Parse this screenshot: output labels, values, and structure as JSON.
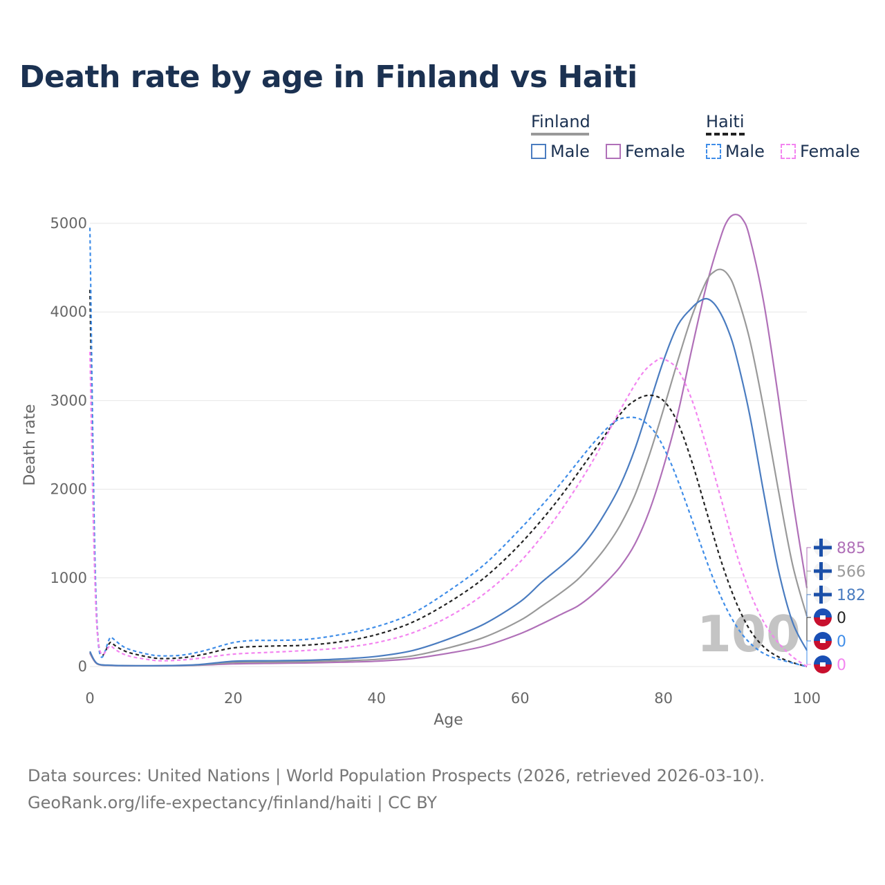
{
  "title": "Death rate by age in Finland vs Haiti",
  "legend": {
    "finland_label": "Finland",
    "haiti_label": "Haiti",
    "finland_male": "Male",
    "finland_female": "Female",
    "haiti_male": "Male",
    "haiti_female": "Female"
  },
  "footer": {
    "line1": "Data sources: United Nations | World Population Prospects (2026, retrieved 2026-03-10).",
    "line2": "GeoRank.org/life-expectancy/finland/haiti | CC BY"
  },
  "colors": {
    "finland_male": "#4a7cc0",
    "finland_female": "#b070b8",
    "finland_total": "#999999",
    "haiti_male": "#3f8de8",
    "haiti_female": "#f384f0",
    "haiti_total": "#222222",
    "title": "#1b3151"
  },
  "chart_data": {
    "type": "line",
    "title": "Death rate by age in Finland vs Haiti",
    "xlabel": "Age",
    "ylabel": "Death rate",
    "xlim": [
      0,
      100
    ],
    "ylim": [
      0,
      5000
    ],
    "xticks": [
      0,
      20,
      40,
      60,
      80,
      100
    ],
    "yticks": [
      0,
      1000,
      2000,
      3000,
      4000,
      5000
    ],
    "grid": true,
    "age_watermark": "100",
    "series": [
      {
        "name": "Finland Female",
        "country": "Finland",
        "sex": "Female",
        "style": "solid",
        "color": "#b070b8",
        "end_label": "885",
        "end_icon": "finland-flag",
        "points": [
          [
            0,
            150
          ],
          [
            1,
            30
          ],
          [
            3,
            12
          ],
          [
            5,
            8
          ],
          [
            10,
            8
          ],
          [
            15,
            14
          ],
          [
            20,
            30
          ],
          [
            25,
            35
          ],
          [
            30,
            40
          ],
          [
            35,
            48
          ],
          [
            40,
            60
          ],
          [
            45,
            90
          ],
          [
            50,
            150
          ],
          [
            55,
            230
          ],
          [
            60,
            370
          ],
          [
            63,
            480
          ],
          [
            66,
            600
          ],
          [
            68,
            680
          ],
          [
            70,
            800
          ],
          [
            72,
            950
          ],
          [
            74,
            1130
          ],
          [
            76,
            1380
          ],
          [
            78,
            1750
          ],
          [
            80,
            2250
          ],
          [
            82,
            2850
          ],
          [
            84,
            3600
          ],
          [
            86,
            4300
          ],
          [
            88,
            4850
          ],
          [
            89,
            5040
          ],
          [
            90,
            5100
          ],
          [
            91,
            5050
          ],
          [
            92,
            4850
          ],
          [
            94,
            4100
          ],
          [
            96,
            3050
          ],
          [
            98,
            1900
          ],
          [
            100,
            885
          ]
        ]
      },
      {
        "name": "Finland Total",
        "country": "Finland",
        "sex": "Total",
        "style": "solid",
        "color": "#999999",
        "end_label": "566",
        "end_icon": "finland-flag",
        "points": [
          [
            0,
            160
          ],
          [
            1,
            32
          ],
          [
            3,
            13
          ],
          [
            5,
            9
          ],
          [
            10,
            9
          ],
          [
            15,
            16
          ],
          [
            20,
            45
          ],
          [
            25,
            50
          ],
          [
            30,
            55
          ],
          [
            35,
            65
          ],
          [
            40,
            80
          ],
          [
            45,
            120
          ],
          [
            50,
            210
          ],
          [
            55,
            330
          ],
          [
            60,
            520
          ],
          [
            63,
            680
          ],
          [
            66,
            850
          ],
          [
            68,
            980
          ],
          [
            70,
            1150
          ],
          [
            72,
            1350
          ],
          [
            74,
            1600
          ],
          [
            76,
            1930
          ],
          [
            78,
            2380
          ],
          [
            80,
            2900
          ],
          [
            82,
            3450
          ],
          [
            84,
            3960
          ],
          [
            86,
            4350
          ],
          [
            87,
            4450
          ],
          [
            88,
            4480
          ],
          [
            89,
            4420
          ],
          [
            90,
            4250
          ],
          [
            92,
            3700
          ],
          [
            94,
            2900
          ],
          [
            96,
            2000
          ],
          [
            98,
            1150
          ],
          [
            100,
            566
          ]
        ]
      },
      {
        "name": "Finland Male",
        "country": "Finland",
        "sex": "Male",
        "style": "solid",
        "color": "#4a7cc0",
        "end_label": "182",
        "end_icon": "finland-flag",
        "points": [
          [
            0,
            170
          ],
          [
            1,
            35
          ],
          [
            3,
            14
          ],
          [
            5,
            10
          ],
          [
            10,
            10
          ],
          [
            15,
            20
          ],
          [
            20,
            60
          ],
          [
            25,
            65
          ],
          [
            30,
            70
          ],
          [
            35,
            85
          ],
          [
            40,
            115
          ],
          [
            45,
            180
          ],
          [
            50,
            310
          ],
          [
            55,
            480
          ],
          [
            60,
            730
          ],
          [
            63,
            950
          ],
          [
            66,
            1150
          ],
          [
            68,
            1300
          ],
          [
            70,
            1500
          ],
          [
            72,
            1750
          ],
          [
            74,
            2050
          ],
          [
            76,
            2450
          ],
          [
            78,
            2950
          ],
          [
            80,
            3450
          ],
          [
            82,
            3850
          ],
          [
            84,
            4050
          ],
          [
            85,
            4120
          ],
          [
            86,
            4150
          ],
          [
            87,
            4100
          ],
          [
            88,
            3980
          ],
          [
            89,
            3800
          ],
          [
            90,
            3550
          ],
          [
            92,
            2850
          ],
          [
            94,
            1950
          ],
          [
            96,
            1100
          ],
          [
            98,
            500
          ],
          [
            100,
            182
          ]
        ]
      },
      {
        "name": "Haiti Total",
        "country": "Haiti",
        "sex": "Total",
        "style": "dashed",
        "color": "#222222",
        "end_label": "0",
        "end_icon": "haiti-flag",
        "points": [
          [
            0,
            4250
          ],
          [
            1,
            450
          ],
          [
            3,
            270
          ],
          [
            5,
            170
          ],
          [
            8,
            110
          ],
          [
            10,
            90
          ],
          [
            13,
            100
          ],
          [
            16,
            140
          ],
          [
            20,
            210
          ],
          [
            25,
            230
          ],
          [
            30,
            240
          ],
          [
            35,
            280
          ],
          [
            40,
            360
          ],
          [
            45,
            500
          ],
          [
            50,
            720
          ],
          [
            55,
            1000
          ],
          [
            60,
            1380
          ],
          [
            65,
            1850
          ],
          [
            70,
            2400
          ],
          [
            74,
            2850
          ],
          [
            76,
            3000
          ],
          [
            78,
            3060
          ],
          [
            80,
            3000
          ],
          [
            82,
            2750
          ],
          [
            84,
            2300
          ],
          [
            86,
            1750
          ],
          [
            88,
            1200
          ],
          [
            90,
            750
          ],
          [
            92,
            420
          ],
          [
            94,
            220
          ],
          [
            96,
            110
          ],
          [
            98,
            45
          ],
          [
            100,
            0
          ]
        ]
      },
      {
        "name": "Haiti Male",
        "country": "Haiti",
        "sex": "Male",
        "style": "dashed",
        "color": "#3f8de8",
        "end_label": "0",
        "end_icon": "haiti-flag",
        "points": [
          [
            0,
            4950
          ],
          [
            1,
            460
          ],
          [
            3,
            330
          ],
          [
            5,
            210
          ],
          [
            8,
            140
          ],
          [
            10,
            120
          ],
          [
            13,
            130
          ],
          [
            16,
            180
          ],
          [
            20,
            270
          ],
          [
            23,
            295
          ],
          [
            25,
            295
          ],
          [
            30,
            305
          ],
          [
            35,
            360
          ],
          [
            40,
            450
          ],
          [
            45,
            600
          ],
          [
            50,
            850
          ],
          [
            55,
            1150
          ],
          [
            60,
            1550
          ],
          [
            65,
            2000
          ],
          [
            70,
            2500
          ],
          [
            73,
            2750
          ],
          [
            75,
            2810
          ],
          [
            77,
            2780
          ],
          [
            79,
            2620
          ],
          [
            81,
            2300
          ],
          [
            83,
            1880
          ],
          [
            85,
            1420
          ],
          [
            87,
            980
          ],
          [
            89,
            620
          ],
          [
            91,
            360
          ],
          [
            93,
            200
          ],
          [
            95,
            110
          ],
          [
            98,
            40
          ],
          [
            100,
            0
          ]
        ]
      },
      {
        "name": "Haiti Female",
        "country": "Haiti",
        "sex": "Female",
        "style": "dashed",
        "color": "#f384f0",
        "end_label": "0",
        "end_icon": "haiti-flag",
        "points": [
          [
            0,
            3550
          ],
          [
            1,
            420
          ],
          [
            3,
            230
          ],
          [
            5,
            130
          ],
          [
            8,
            80
          ],
          [
            10,
            65
          ],
          [
            13,
            75
          ],
          [
            16,
            100
          ],
          [
            20,
            140
          ],
          [
            25,
            160
          ],
          [
            30,
            180
          ],
          [
            35,
            210
          ],
          [
            40,
            270
          ],
          [
            45,
            380
          ],
          [
            50,
            560
          ],
          [
            55,
            820
          ],
          [
            60,
            1180
          ],
          [
            65,
            1680
          ],
          [
            70,
            2300
          ],
          [
            74,
            2900
          ],
          [
            77,
            3300
          ],
          [
            79,
            3450
          ],
          [
            80,
            3470
          ],
          [
            82,
            3350
          ],
          [
            84,
            3000
          ],
          [
            86,
            2480
          ],
          [
            88,
            1900
          ],
          [
            90,
            1320
          ],
          [
            92,
            850
          ],
          [
            94,
            500
          ],
          [
            96,
            270
          ],
          [
            98,
            110
          ],
          [
            100,
            0
          ]
        ]
      }
    ]
  }
}
